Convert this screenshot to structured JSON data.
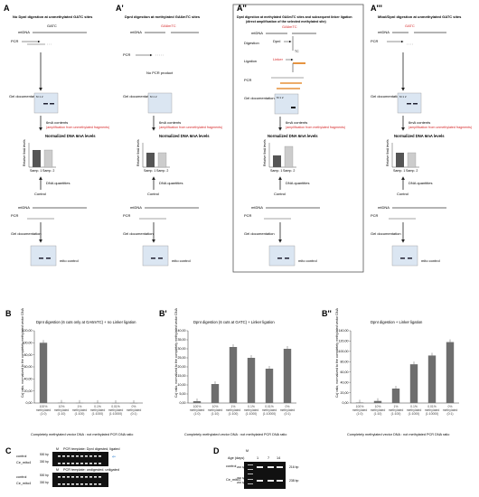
{
  "panels_A": [
    {
      "letter": "A",
      "title": "No DpnI digestion at unmethylated GATC sites",
      "site": "GATC",
      "site_color": "#222222"
    },
    {
      "letter": "A'",
      "title": "DpnI digestion at methylated GA6mTC sites",
      "site": "GA6mTC",
      "site_color": "#d62728"
    },
    {
      "letter": "A''",
      "title": "DpnI digestion at methylated GA6mTC sites and subsequent linker ligation",
      "subtitle": "(direct amplification of the selected methylated site)",
      "site": "GA6mTC",
      "site_color": "#d62728"
    },
    {
      "letter": "A'''",
      "title": "MboI/DpnI digestion at unmethylated GATC sites",
      "site": "GATC",
      "site_color": "#d62728"
    }
  ],
  "labels": {
    "mtdna": "mtDNA",
    "pcr": "PCR",
    "no_pcr": "No PCR product",
    "gel_doc": "Gel documentation",
    "sixma_contents": "6mA contents",
    "amp_unmeth": "(amplification from unmethylated fragments)",
    "amp_meth": "(amplification from methylated fragments)",
    "normalized": "Normalized DNA 6mA levels",
    "rel_levels": "Relative 6mA levels",
    "samp1": "Samp. 1",
    "samp2": "Samp. 2",
    "dna_quantities": "DNA quantities",
    "control": "Control",
    "mito_control": "mito control",
    "digestion": "Digestion",
    "dpni": "DpnI",
    "ligation": "Ligation",
    "linker": "Linker",
    "gel_lanes": "M  1  2",
    "cut_tc": "TC"
  },
  "panel_B": {
    "letter": "B",
    "title": "DpnI digestion (6 cuts only at GA6mTC) + no Linker ligation",
    "ylabel": "Cq' ratio, normalized to the completely methylated vector DNA",
    "xlabel": "Completely methylated vector DNA : not methylated PCR DNA ratio"
  },
  "panel_B1": {
    "letter": "B'",
    "title": "DpnI digestion (6 cuts at GATC) + Linker ligation",
    "ylabel": "Cq' ratio, normalized to the completely methylated vector DNA",
    "xlabel": "Completely methylated vector DNA : not methylated PCR DNA ratio"
  },
  "panel_B2": {
    "letter": "B''",
    "title": "DpnI digestion + Linker ligation",
    "ylabel": "Cq' ratio, normalized to the completely methylated vector DNA",
    "xlabel": "Completely methylated vector DNA : not methylated PCR DNA ratio"
  },
  "chart_data": [
    {
      "type": "bar",
      "categories": [
        "100% methylated (1:0)",
        "10% methylated (1:10)",
        "1% methylated (1:100)",
        "0.1% methylated (1:1000)",
        "0.01% methylated (1:10000)",
        "0% methylated (0:1)"
      ],
      "values": [
        100,
        0.5,
        0.3,
        0.2,
        0.1,
        0.1
      ],
      "ylim": [
        0,
        120
      ],
      "yticks": [
        0,
        20,
        40,
        60,
        80,
        100,
        120
      ]
    },
    {
      "type": "bar",
      "categories": [
        "100% methylated (1:0)",
        "10% methylated (1:10)",
        "1% methylated (1:100)",
        "0.1% methylated (1:1000)",
        "0.01% methylated (1:10000)",
        "0% methylated (0:1)"
      ],
      "values": [
        1,
        10.5,
        31,
        25,
        19,
        30
      ],
      "ylim": [
        0,
        40
      ],
      "yticks": [
        0,
        5,
        10,
        15,
        20,
        25,
        30,
        35,
        40
      ]
    },
    {
      "type": "bar",
      "categories": [
        "100% methylated (1:0)",
        "10% methylated (1:10)",
        "1% methylated (1:100)",
        "0.1% methylated (1:1000)",
        "0.01% methylated (1:10000)",
        "0% methylated (0:1)"
      ],
      "values": [
        1,
        4,
        28,
        75,
        92,
        118
      ],
      "ylim": [
        0,
        140
      ],
      "yticks": [
        0,
        20,
        40,
        60,
        80,
        100,
        120,
        140
      ]
    }
  ],
  "panel_C": {
    "letter": "C",
    "gel1_title": "PCR template: DpnI digested, ligated",
    "gel2_title": "PCR template: undigested, unligated",
    "rows": [
      "control",
      "Ce_mito4"
    ],
    "sizes": [
      "500 bp",
      "300 bp"
    ],
    "marker": "M"
  },
  "panel_D": {
    "letter": "D",
    "age_label": "Age (days)",
    "ages": [
      "1",
      "7",
      "14"
    ],
    "marker": "M",
    "rows": [
      "control",
      "Ce_mito1"
    ],
    "sizes": [
      "200 bp",
      "300 bp",
      "200 bp"
    ],
    "band_sizes": [
      "216 bp",
      "238 bp"
    ]
  }
}
